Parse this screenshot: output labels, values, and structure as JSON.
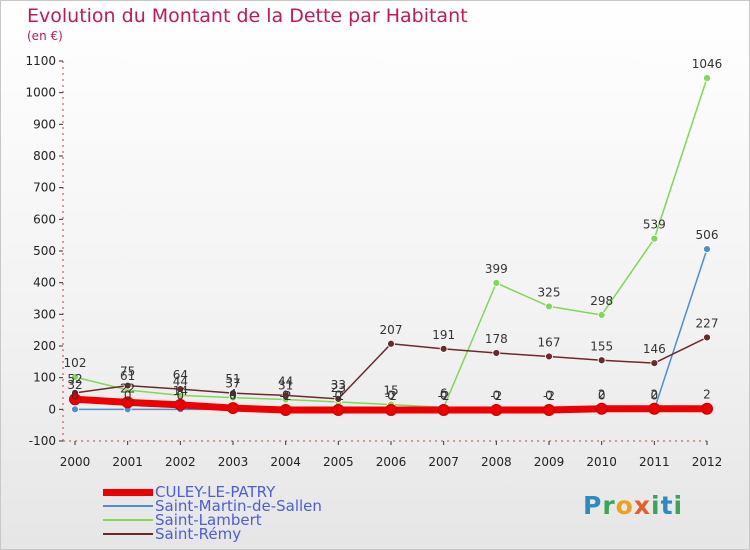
{
  "title": "Evolution du Montant de la Dette par Habitant",
  "unit": "(en €)",
  "logo_text": "Proxiti",
  "chart_data": {
    "type": "line",
    "x": [
      "2000",
      "2001",
      "2002",
      "2003",
      "2004",
      "2005",
      "2006",
      "2007",
      "2008",
      "2009",
      "2010",
      "2011",
      "2012"
    ],
    "ylim": [
      -100,
      1100
    ],
    "yticks": [
      -100,
      0,
      100,
      200,
      300,
      400,
      500,
      600,
      700,
      800,
      900,
      1000,
      1100
    ],
    "grid": false,
    "legend_position": "bottom-left",
    "series": [
      {
        "name": "CULEY-LE-PATRY",
        "color": "#ee0000",
        "values": [
          32,
          22,
          14,
          4,
          -2,
          -2,
          -2,
          -2,
          -2,
          -2,
          2,
          2,
          2
        ]
      },
      {
        "name": "Saint-Martin-de-Sallen",
        "color": "#4a8fd4",
        "values": [
          0,
          0,
          0,
          0,
          0,
          0,
          0,
          0,
          0,
          0,
          0,
          0,
          506
        ]
      },
      {
        "name": "Saint-Lambert",
        "color": "#7ed957",
        "values": [
          102,
          61,
          44,
          37,
          31,
          23,
          15,
          6,
          399,
          325,
          298,
          539,
          1046
        ]
      },
      {
        "name": "Saint-Rémy",
        "color": "#6b2a2a",
        "values": [
          52,
          75,
          64,
          51,
          44,
          33,
          207,
          191,
          178,
          167,
          155,
          146,
          227
        ]
      }
    ]
  }
}
